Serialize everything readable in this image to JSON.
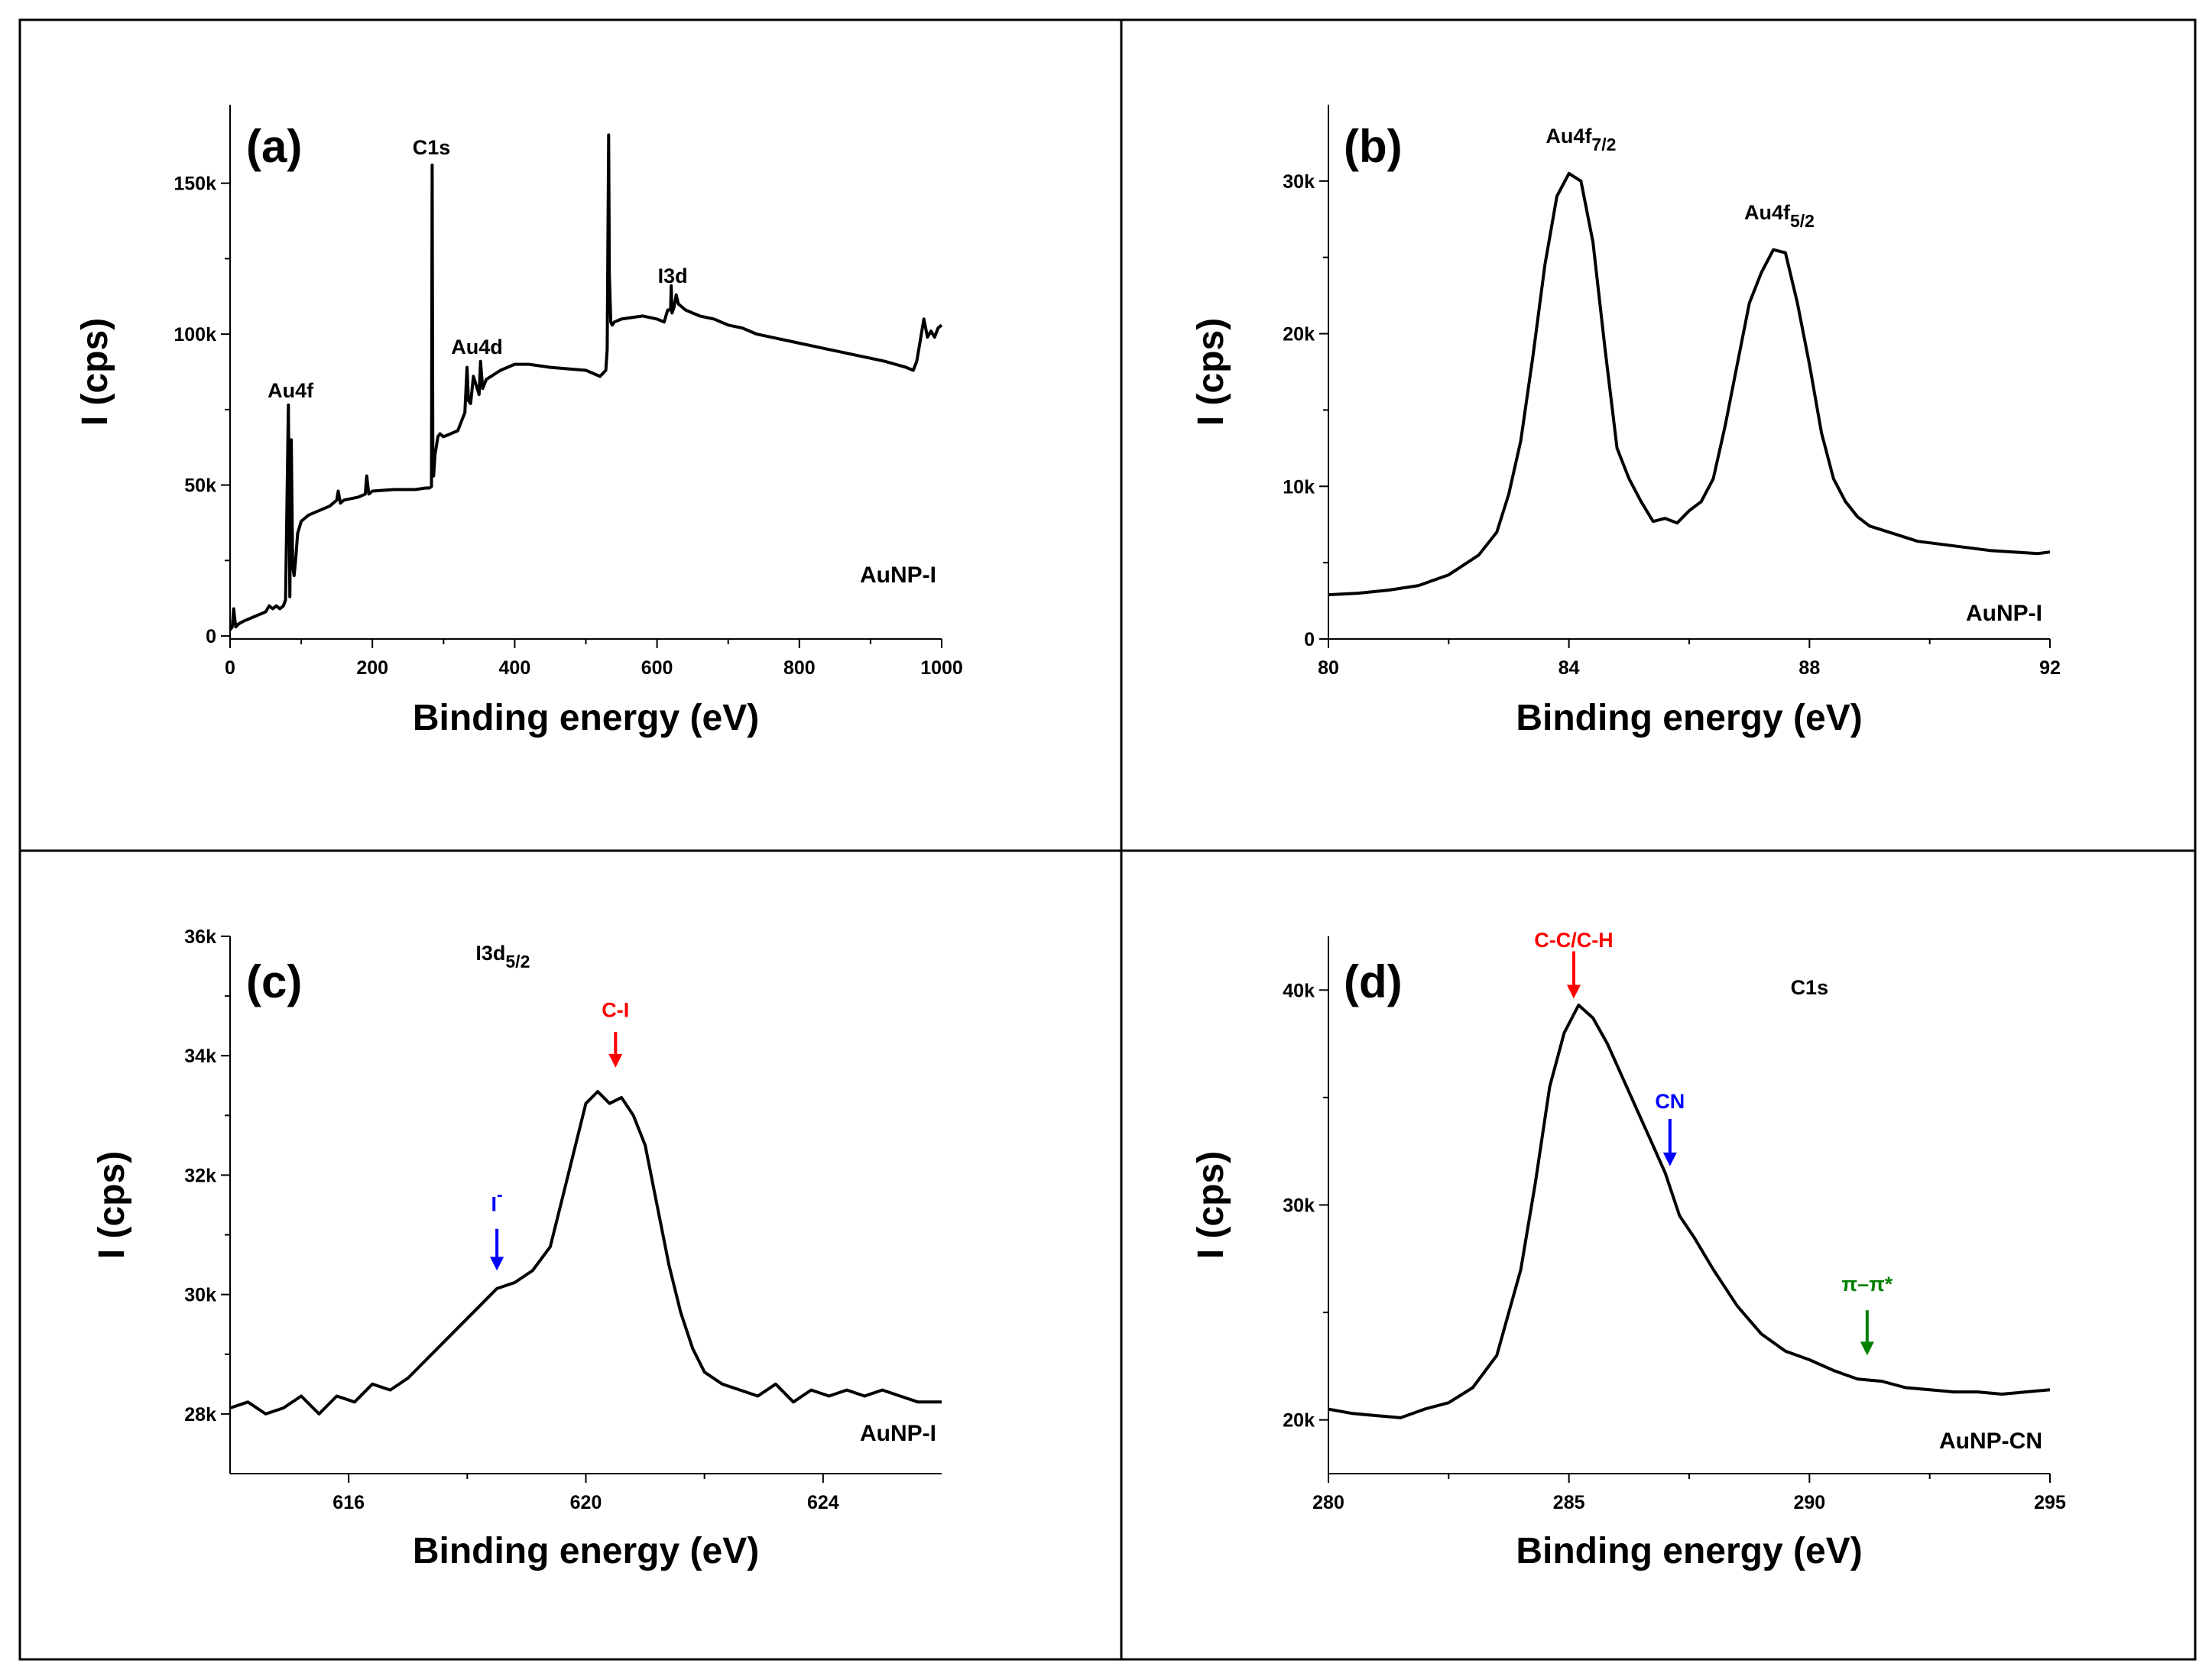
{
  "figure": {
    "background": "#ffffff",
    "line_color": "#000000"
  },
  "chart_data": [
    {
      "id": "a",
      "type": "line",
      "panel_label": "(a)",
      "title": "",
      "xlabel": "Binding energy (eV)",
      "ylabel": "I (cps)",
      "xlim": [
        0,
        1000
      ],
      "ylim": [
        -1000,
        176000
      ],
      "xticks": [
        0,
        200,
        400,
        600,
        800,
        1000
      ],
      "xtick_labels": [
        "0",
        "200",
        "400",
        "600",
        "800",
        "1000"
      ],
      "yticks": [
        0,
        50000,
        100000,
        150000
      ],
      "ytick_labels": [
        "0",
        "50k",
        "100k",
        "150k"
      ],
      "sample_label": "AuNP-I",
      "annotations": [
        {
          "text": "Au4f",
          "sub": "",
          "x": 85,
          "y": 79000,
          "color": "#000000"
        },
        {
          "text": "C1s",
          "sub": "",
          "x": 283,
          "y": 159500,
          "color": "#000000"
        },
        {
          "text": "Au4d",
          "sub": "",
          "x": 347,
          "y": 93500,
          "color": "#000000"
        },
        {
          "text": "I3d",
          "sub": "",
          "x": 622,
          "y": 117000,
          "color": "#000000"
        }
      ],
      "arrows": [],
      "series": [
        {
          "name": "AuNP-I",
          "x": [
            0,
            3,
            5,
            8,
            12,
            20,
            30,
            40,
            50,
            55,
            60,
            65,
            70,
            75,
            78,
            82,
            84,
            86,
            88,
            90,
            92,
            95,
            100,
            110,
            120,
            140,
            150,
            152,
            155,
            160,
            180,
            190,
            192,
            195,
            200,
            230,
            260,
            275,
            280,
            283,
            284,
            285,
            286,
            288,
            292,
            295,
            300,
            310,
            320,
            330,
            333,
            335,
            338,
            342,
            350,
            352,
            355,
            360,
            380,
            400,
            420,
            450,
            500,
            520,
            528,
            530,
            532,
            533,
            535,
            537,
            540,
            550,
            580,
            600,
            610,
            615,
            619,
            620,
            621,
            624,
            627,
            630,
            635,
            640,
            650,
            660,
            680,
            700,
            720,
            740,
            760,
            780,
            800,
            820,
            840,
            860,
            880,
            900,
            920,
            950,
            960,
            965,
            970,
            975,
            980,
            985,
            990,
            995,
            1000
          ],
          "y": [
            2000,
            3000,
            9000,
            3000,
            4000,
            5000,
            6000,
            7000,
            8000,
            10000,
            9000,
            10000,
            9000,
            10000,
            12000,
            76500,
            13000,
            65000,
            23000,
            20000,
            25000,
            34000,
            38000,
            40000,
            41000,
            43000,
            45000,
            48000,
            44000,
            45000,
            46000,
            47000,
            53000,
            47000,
            48000,
            48500,
            48500,
            49000,
            49000,
            49500,
            156000,
            55000,
            53000,
            60000,
            66000,
            67000,
            66000,
            67000,
            68000,
            74000,
            89000,
            78000,
            77000,
            86000,
            80000,
            91000,
            82000,
            85000,
            88000,
            90000,
            90000,
            89000,
            88000,
            86000,
            88000,
            95000,
            166000,
            120000,
            104000,
            103000,
            104000,
            105000,
            106000,
            105000,
            104000,
            108000,
            108000,
            116000,
            107000,
            109000,
            113000,
            110000,
            109000,
            108000,
            107000,
            106000,
            105000,
            103000,
            102000,
            100000,
            99000,
            98000,
            97000,
            96000,
            95000,
            94000,
            93000,
            92000,
            91000,
            89000,
            88000,
            91000,
            98000,
            105000,
            99000,
            101000,
            99000,
            102000,
            103000
          ]
        }
      ]
    },
    {
      "id": "b",
      "type": "line",
      "panel_label": "(b)",
      "title": "",
      "xlabel": "Binding energy (eV)",
      "ylabel": "I (cps)",
      "xlim": [
        80,
        92
      ],
      "ylim": [
        0,
        35000
      ],
      "xticks": [
        80,
        84,
        88,
        92
      ],
      "xtick_labels": [
        "80",
        "84",
        "88",
        "92"
      ],
      "yticks": [
        0,
        10000,
        20000,
        30000
      ],
      "ytick_labels": [
        "0",
        "10k",
        "20k",
        "30k"
      ],
      "sample_label": "AuNP-I",
      "annotations": [
        {
          "text": "Au4f",
          "sub": "7/2",
          "x": 84.2,
          "y": 32500,
          "color": "#000000"
        },
        {
          "text": "Au4f",
          "sub": "5/2",
          "x": 87.5,
          "y": 27500,
          "color": "#000000"
        }
      ],
      "arrows": [],
      "series": [
        {
          "name": "AuNP-I",
          "x": [
            80,
            80.5,
            81,
            81.5,
            82,
            82.5,
            82.8,
            83.0,
            83.2,
            83.4,
            83.6,
            83.8,
            84.0,
            84.2,
            84.4,
            84.6,
            84.8,
            85.0,
            85.2,
            85.4,
            85.6,
            85.8,
            86.0,
            86.2,
            86.4,
            86.6,
            86.8,
            87.0,
            87.2,
            87.4,
            87.6,
            87.8,
            88.0,
            88.2,
            88.4,
            88.6,
            88.8,
            89.0,
            89.4,
            89.8,
            90.2,
            90.6,
            91.0,
            91.4,
            91.8,
            92.0
          ],
          "y": [
            2900,
            3000,
            3200,
            3500,
            4200,
            5500,
            7000,
            9500,
            13000,
            18500,
            24500,
            29000,
            30500,
            30000,
            26000,
            19000,
            12500,
            10500,
            9000,
            7700,
            7900,
            7600,
            8400,
            9000,
            10500,
            14000,
            18000,
            22000,
            24000,
            25500,
            25300,
            22000,
            18000,
            13500,
            10500,
            9000,
            8000,
            7400,
            6900,
            6400,
            6200,
            6000,
            5800,
            5700,
            5600,
            5700
          ]
        }
      ]
    },
    {
      "id": "c",
      "type": "line",
      "panel_label": "(c)",
      "title": "",
      "xlabel": "Binding energy (eV)",
      "ylabel": "I (cps)",
      "xlim": [
        614,
        626
      ],
      "ylim": [
        27000,
        36000
      ],
      "xticks": [
        616,
        620,
        624
      ],
      "xtick_labels": [
        "616",
        "620",
        "624"
      ],
      "yticks": [
        28000,
        30000,
        32000,
        34000,
        36000
      ],
      "ytick_labels": [
        "28k",
        "30k",
        "32k",
        "34k",
        "36k"
      ],
      "sample_label": "AuNP-I",
      "annotations": [
        {
          "text": "I3d",
          "sub": "5/2",
          "x": 618.6,
          "y": 35600,
          "color": "#000000"
        },
        {
          "text": "C-I",
          "sub": "",
          "x": 620.5,
          "y": 34650,
          "color": "#ff0000"
        },
        {
          "text": "I",
          "sub": "-",
          "x": 618.5,
          "y": 31400,
          "color": "#0000ff"
        }
      ],
      "arrows": [
        {
          "x": 620.5,
          "y_from": 34400,
          "y_to": 33800,
          "color": "#ff0000"
        },
        {
          "x": 618.5,
          "y_from": 31100,
          "y_to": 30400,
          "color": "#0000ff"
        }
      ],
      "series": [
        {
          "name": "AuNP-I",
          "x": [
            614.0,
            614.3,
            614.6,
            614.9,
            615.2,
            615.5,
            615.8,
            616.1,
            616.4,
            616.7,
            617.0,
            617.3,
            617.6,
            617.9,
            618.2,
            618.5,
            618.8,
            619.1,
            619.4,
            619.6,
            619.8,
            620.0,
            620.2,
            620.4,
            620.6,
            620.8,
            621.0,
            621.2,
            621.4,
            621.6,
            621.8,
            622.0,
            622.3,
            622.6,
            622.9,
            623.2,
            623.5,
            623.8,
            624.1,
            624.4,
            624.7,
            625.0,
            625.3,
            625.6,
            626.0
          ],
          "y": [
            28100,
            28200,
            28000,
            28100,
            28300,
            28000,
            28300,
            28200,
            28500,
            28400,
            28600,
            28900,
            29200,
            29500,
            29800,
            30100,
            30200,
            30400,
            30800,
            31600,
            32400,
            33200,
            33400,
            33200,
            33300,
            33000,
            32500,
            31500,
            30500,
            29700,
            29100,
            28700,
            28500,
            28400,
            28300,
            28500,
            28200,
            28400,
            28300,
            28400,
            28300,
            28400,
            28300,
            28200,
            28200
          ]
        }
      ]
    },
    {
      "id": "d",
      "type": "line",
      "panel_label": "(d)",
      "title": "",
      "xlabel": "Binding energy (eV)",
      "ylabel": "I (cps)",
      "xlim": [
        280,
        295
      ],
      "ylim": [
        17500,
        42500
      ],
      "xticks": [
        280,
        285,
        290,
        295
      ],
      "xtick_labels": [
        "280",
        "285",
        "290",
        "295"
      ],
      "yticks": [
        20000,
        30000,
        40000
      ],
      "ytick_labels": [
        "20k",
        "30k",
        "40k"
      ],
      "sample_label": "AuNP-CN",
      "annotations": [
        {
          "text": "C-C/C-H",
          "sub": "",
          "x": 285.1,
          "y": 42000,
          "color": "#ff0000"
        },
        {
          "text": "C1s",
          "sub": "",
          "x": 290.0,
          "y": 39800,
          "color": "#000000"
        },
        {
          "text": "CN",
          "sub": "",
          "x": 287.1,
          "y": 34500,
          "color": "#0000ff"
        },
        {
          "text": "π–π*",
          "sub": "",
          "x": 291.2,
          "y": 26000,
          "color": "#008000"
        }
      ],
      "arrows": [
        {
          "x": 285.1,
          "y_from": 41800,
          "y_to": 39600,
          "color": "#ff0000"
        },
        {
          "x": 287.1,
          "y_from": 34000,
          "y_to": 31800,
          "color": "#0000ff"
        },
        {
          "x": 291.2,
          "y_from": 25100,
          "y_to": 23000,
          "color": "#008000"
        }
      ],
      "series": [
        {
          "name": "AuNP-CN",
          "x": [
            280.0,
            280.5,
            281.0,
            281.5,
            282.0,
            282.5,
            283.0,
            283.5,
            284.0,
            284.3,
            284.6,
            284.9,
            285.2,
            285.5,
            285.8,
            286.1,
            286.4,
            286.7,
            287.0,
            287.3,
            287.6,
            288.0,
            288.5,
            289.0,
            289.5,
            290.0,
            290.5,
            291.0,
            291.5,
            292.0,
            292.5,
            293.0,
            293.5,
            294.0,
            294.5,
            295.0
          ],
          "y": [
            20500,
            20300,
            20200,
            20100,
            20500,
            20800,
            21500,
            23000,
            27000,
            31000,
            35500,
            38000,
            39300,
            38700,
            37500,
            36000,
            34500,
            33000,
            31500,
            29500,
            28500,
            27000,
            25300,
            24000,
            23200,
            22800,
            22300,
            21900,
            21800,
            21500,
            21400,
            21300,
            21300,
            21200,
            21300,
            21400
          ]
        }
      ]
    }
  ]
}
